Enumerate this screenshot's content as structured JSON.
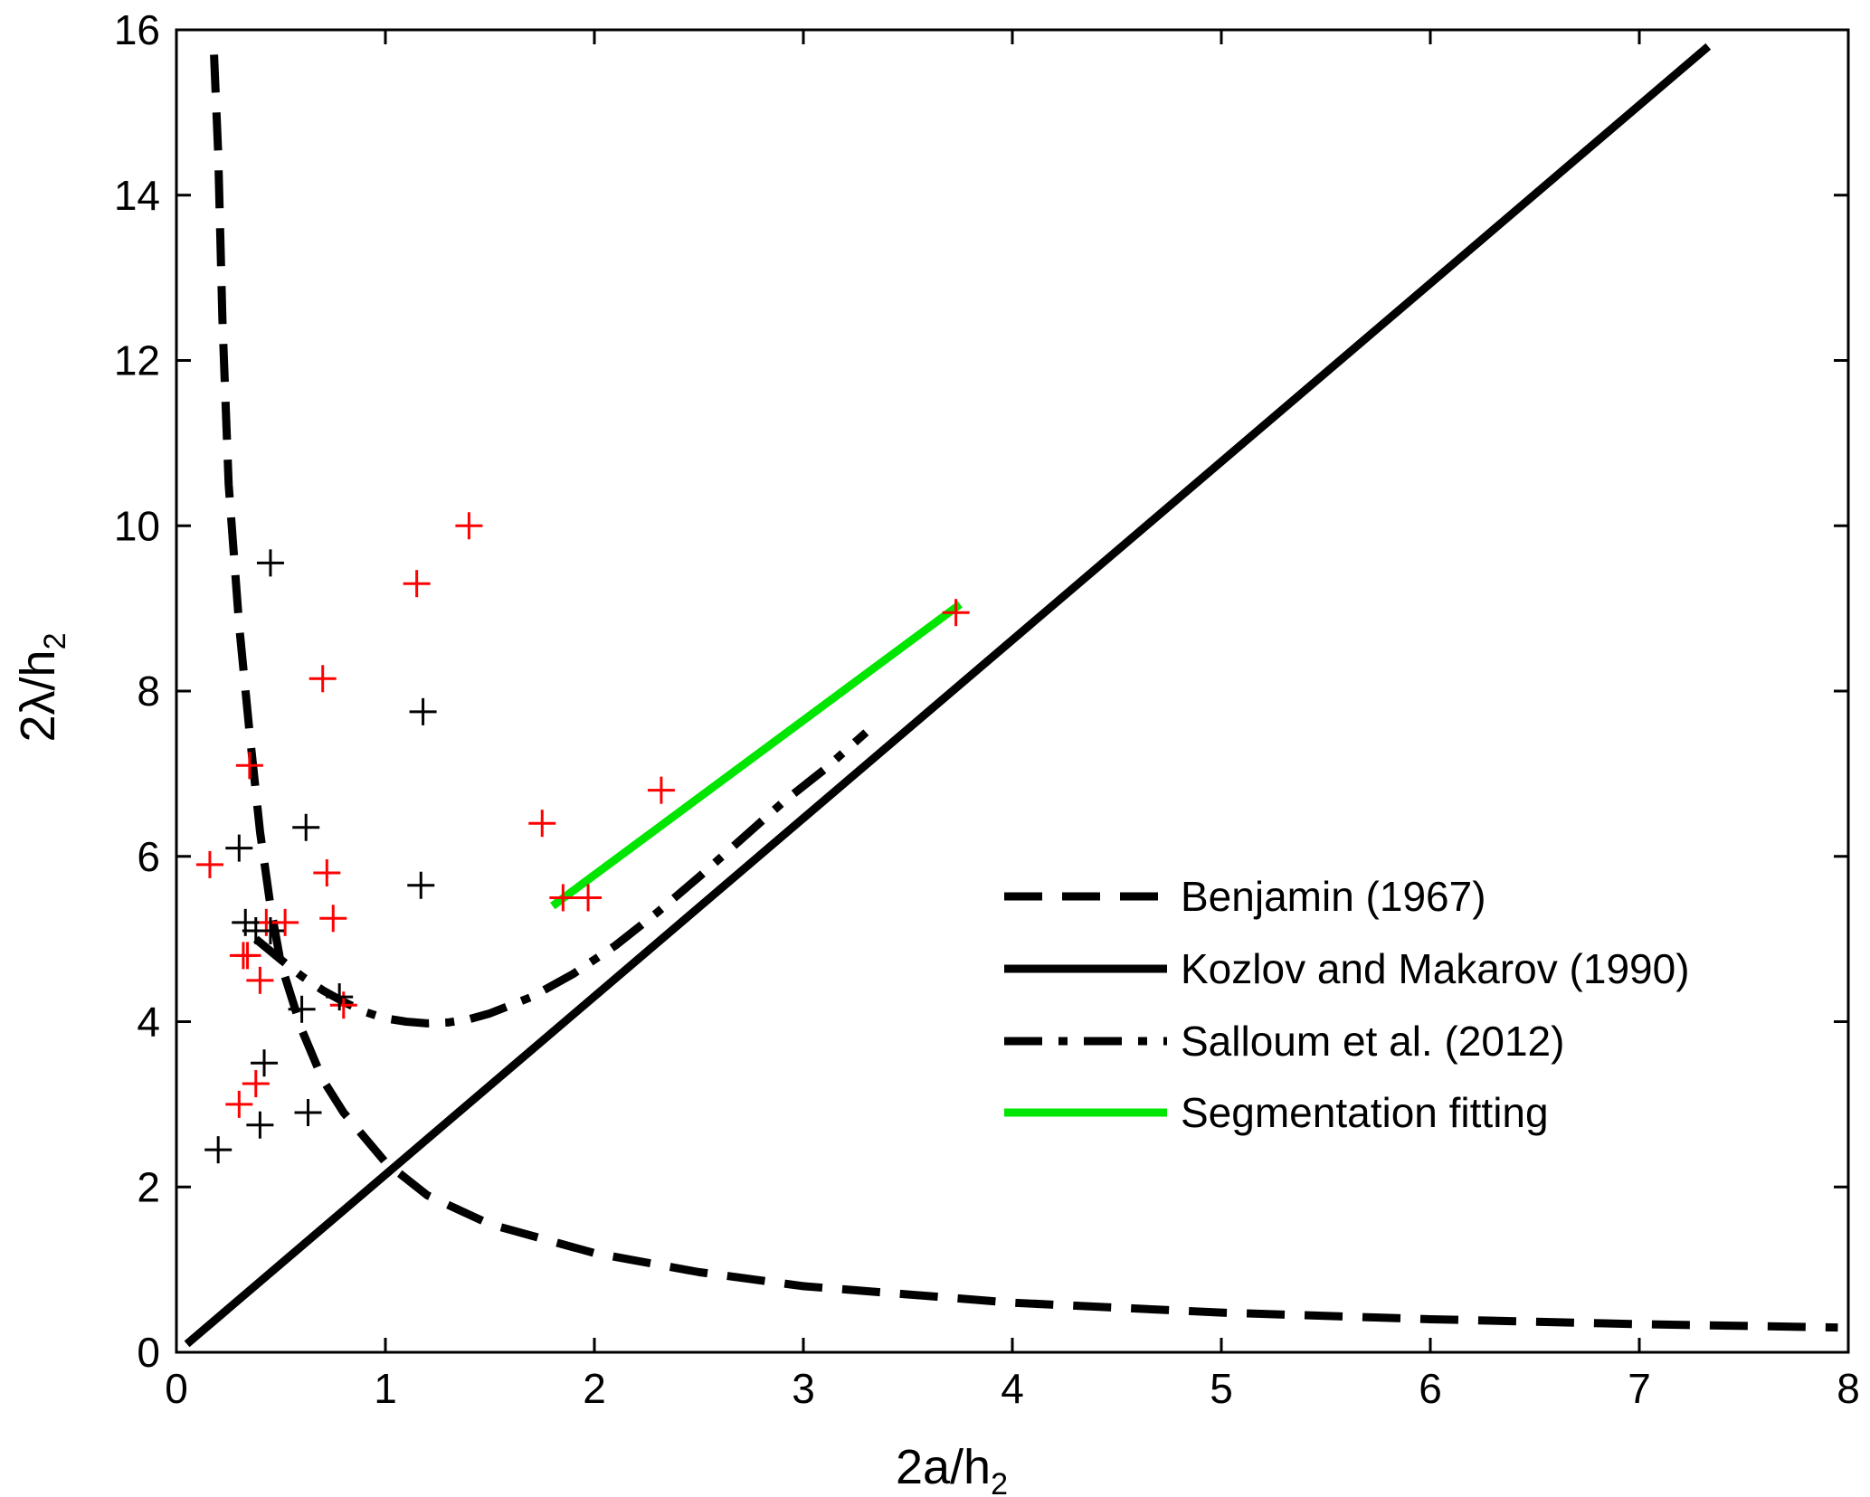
{
  "chart_data": {
    "type": "scatter",
    "title": "",
    "xlabel": {
      "main": "2a/h",
      "sub": "2"
    },
    "ylabel": {
      "main": "2λ/h",
      "sub": "2"
    },
    "xlim": [
      0,
      8
    ],
    "ylim": [
      0,
      16
    ],
    "xticks": [
      0,
      1,
      2,
      3,
      4,
      5,
      6,
      7,
      8
    ],
    "yticks": [
      0,
      2,
      4,
      6,
      8,
      10,
      12,
      14,
      16
    ],
    "grid": false,
    "legend_position": "center-right",
    "series": [
      {
        "name": "Benjamin (1967)",
        "kind": "line",
        "style": "dashed",
        "color": "#000000",
        "x": [
          0.18,
          0.2,
          0.22,
          0.25,
          0.3,
          0.35,
          0.4,
          0.45,
          0.5,
          0.6,
          0.7,
          0.8,
          1.0,
          1.2,
          1.5,
          2.0,
          2.5,
          3.0,
          4.0,
          5.0,
          6.0,
          7.0,
          7.95
        ],
        "y": [
          15.7,
          14.5,
          12.5,
          10.5,
          8.8,
          7.5,
          6.3,
          5.4,
          4.7,
          3.9,
          3.3,
          2.9,
          2.3,
          1.9,
          1.55,
          1.2,
          0.97,
          0.8,
          0.6,
          0.48,
          0.4,
          0.34,
          0.3
        ]
      },
      {
        "name": "Kozlov and Makarov (1990)",
        "kind": "line",
        "style": "solid",
        "color": "#000000",
        "x": [
          0.05,
          7.33
        ],
        "y": [
          0.1,
          15.8
        ]
      },
      {
        "name": "Salloum et al. (2012)",
        "kind": "line",
        "style": "dashdot",
        "color": "#000000",
        "x": [
          0.38,
          0.5,
          0.6,
          0.7,
          0.8,
          0.9,
          1.0,
          1.1,
          1.2,
          1.3,
          1.4,
          1.5,
          1.7,
          1.9,
          2.1,
          2.3,
          2.5,
          2.7,
          2.9,
          3.1,
          3.3
        ],
        "y": [
          5.0,
          4.75,
          4.55,
          4.38,
          4.24,
          4.12,
          4.04,
          4.0,
          3.98,
          3.99,
          4.03,
          4.1,
          4.3,
          4.58,
          4.92,
          5.32,
          5.75,
          6.2,
          6.65,
          7.05,
          7.5
        ]
      },
      {
        "name": "Segmentation fitting",
        "kind": "line",
        "style": "solid",
        "color": "#00e600",
        "x": [
          1.8,
          3.75
        ],
        "y": [
          5.4,
          9.05
        ]
      },
      {
        "name": "Data (red)",
        "kind": "marker",
        "marker": "+",
        "color": "#ff0000",
        "x": [
          0.16,
          0.3,
          0.32,
          0.34,
          0.35,
          0.38,
          0.4,
          0.43,
          0.52,
          0.7,
          0.72,
          0.75,
          0.8,
          1.15,
          1.4,
          1.75,
          1.85,
          1.97,
          2.32,
          3.73
        ],
        "y": [
          5.9,
          3.0,
          4.8,
          4.8,
          7.1,
          3.25,
          4.5,
          5.2,
          5.2,
          8.15,
          5.8,
          5.25,
          4.2,
          9.3,
          10.0,
          6.4,
          5.5,
          5.5,
          6.8,
          8.95
        ]
      },
      {
        "name": "Data (black)",
        "kind": "marker",
        "marker": "+",
        "color": "#000000",
        "x": [
          0.2,
          0.3,
          0.33,
          0.38,
          0.4,
          0.42,
          0.45,
          0.45,
          0.6,
          0.62,
          0.63,
          0.78,
          1.17,
          1.18
        ],
        "y": [
          2.45,
          6.1,
          5.2,
          5.1,
          2.75,
          3.5,
          9.55,
          5.1,
          4.15,
          6.35,
          2.9,
          4.3,
          5.65,
          7.75
        ]
      }
    ]
  },
  "legend": {
    "items": [
      {
        "label": "Benjamin (1967)",
        "style": "dashed",
        "color": "#000000"
      },
      {
        "label": "Kozlov and Makarov (1990)",
        "style": "solid",
        "color": "#000000"
      },
      {
        "label": "Salloum et al. (2012)",
        "style": "dashdot",
        "color": "#000000"
      },
      {
        "label": "Segmentation fitting",
        "style": "solid",
        "color": "#00e600"
      }
    ]
  }
}
